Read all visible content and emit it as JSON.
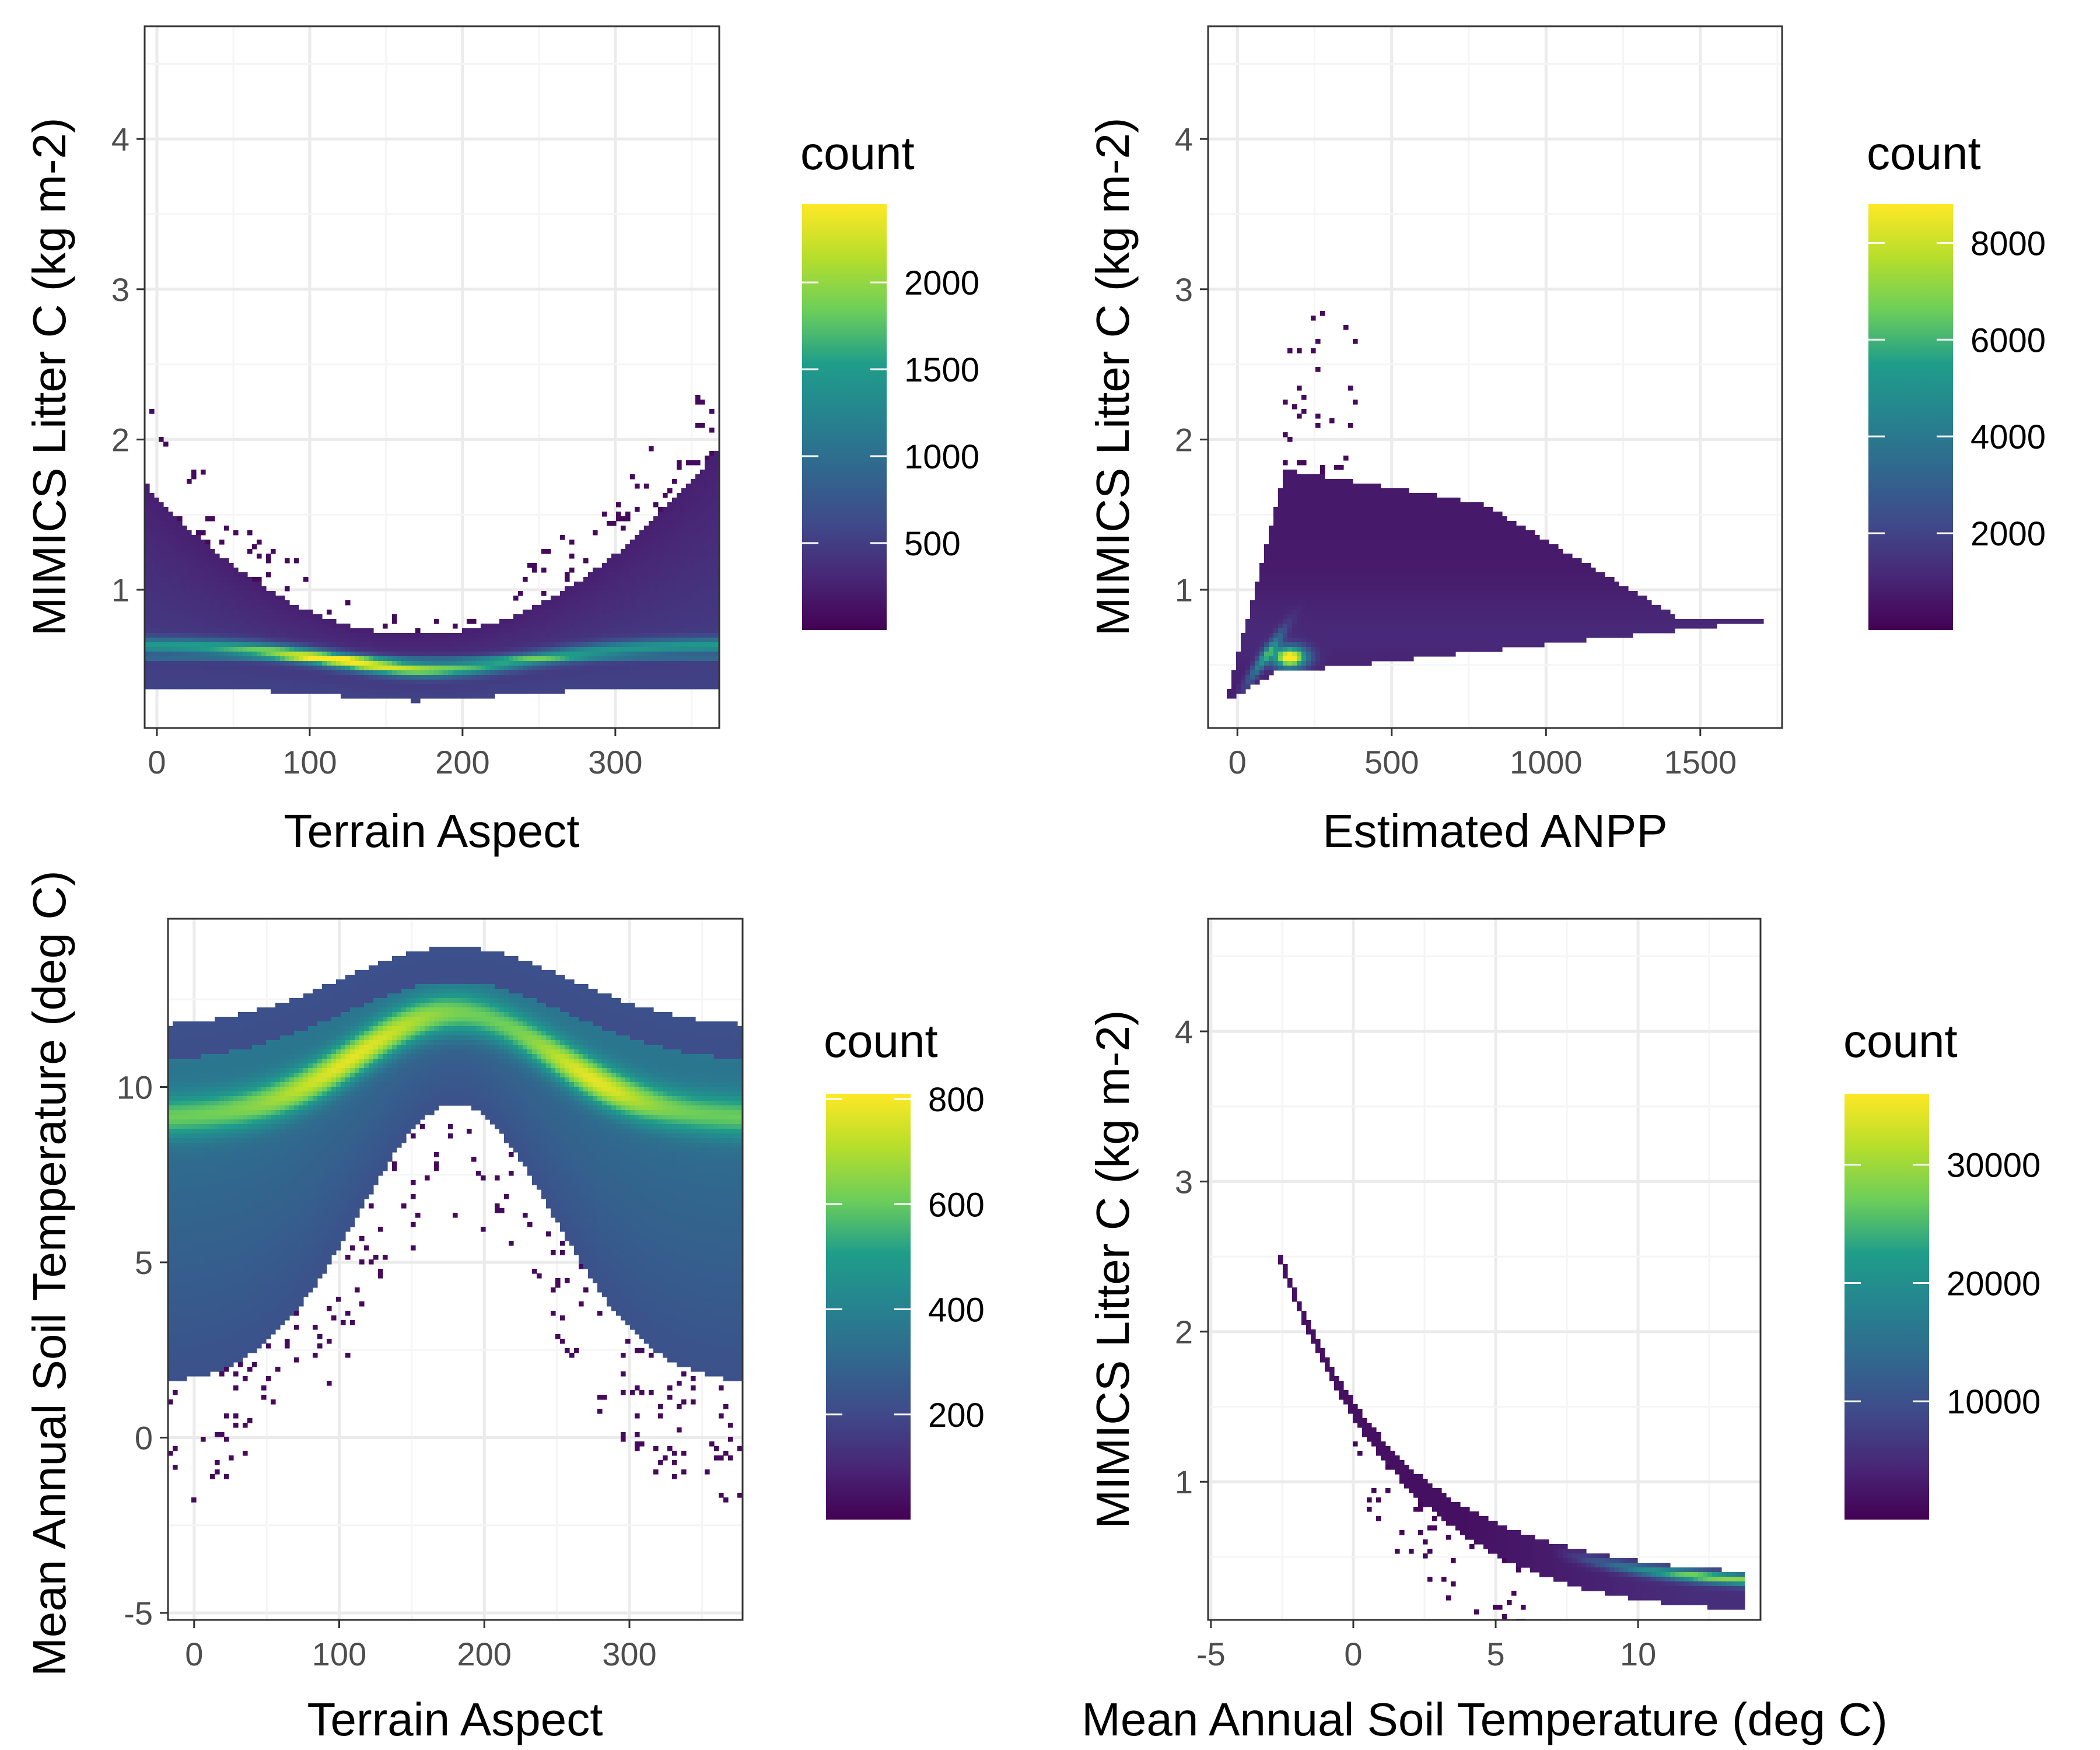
{
  "colors": {
    "panel_border": "#333333",
    "grid_major": "#ebebeb",
    "grid_minor": "#f5f5f5",
    "viridis": [
      "#440154",
      "#482777",
      "#3f4a8a",
      "#31678e",
      "#26838f",
      "#1f9d8a",
      "#6cce5a",
      "#b6de2b",
      "#fee825"
    ]
  },
  "chart_data": [
    {
      "type": "heatmap",
      "id": "p1",
      "xlabel": "Terrain Aspect",
      "ylabel": "MIMICS Litter C (kg m-2)",
      "xlim": [
        -8,
        368
      ],
      "ylim": [
        0.08,
        4.75
      ],
      "xticks": [
        0,
        100,
        200,
        300
      ],
      "yticks": [
        1,
        2,
        3,
        4
      ],
      "legend": {
        "title": "count",
        "min": 0,
        "max": 2450,
        "breaks": [
          500,
          1000,
          1500,
          2000
        ],
        "position": "right"
      },
      "grid": true
    },
    {
      "type": "heatmap",
      "id": "p2",
      "xlabel": "Estimated ANPP",
      "ylabel": "MIMICS Litter C (kg m-2)",
      "xlim": [
        -95,
        1765
      ],
      "ylim": [
        0.08,
        4.75
      ],
      "xticks": [
        0,
        500,
        1000,
        1500
      ],
      "yticks": [
        1,
        2,
        3,
        4
      ],
      "legend": {
        "title": "count",
        "min": 0,
        "max": 8800,
        "breaks": [
          2000,
          4000,
          6000,
          8000
        ],
        "position": "right"
      },
      "grid": true
    },
    {
      "type": "heatmap",
      "id": "p3",
      "xlabel": "Terrain Aspect",
      "ylabel": "Mean Annual Soil Temperature (deg C)",
      "xlim": [
        -18,
        378
      ],
      "ylim": [
        -5.2,
        14.8
      ],
      "xticks": [
        0,
        100,
        200,
        300
      ],
      "yticks": [
        -5,
        0,
        5,
        10
      ],
      "legend": {
        "title": "count",
        "min": 0,
        "max": 810,
        "breaks": [
          200,
          400,
          600,
          800
        ],
        "position": "right"
      },
      "grid": true
    },
    {
      "type": "heatmap",
      "id": "p4",
      "xlabel": "Mean Annual Soil Temperature (deg C)",
      "ylabel": "MIMICS Litter C (kg m-2)",
      "xlim": [
        -5.1,
        14.3
      ],
      "ylim": [
        0.08,
        4.75
      ],
      "xticks": [
        -5,
        0,
        5,
        10
      ],
      "yticks": [
        1,
        2,
        3,
        4
      ],
      "legend": {
        "title": "count",
        "min": 0,
        "max": 36000,
        "breaks": [
          10000,
          20000,
          30000
        ],
        "position": "right"
      },
      "grid": true
    }
  ]
}
